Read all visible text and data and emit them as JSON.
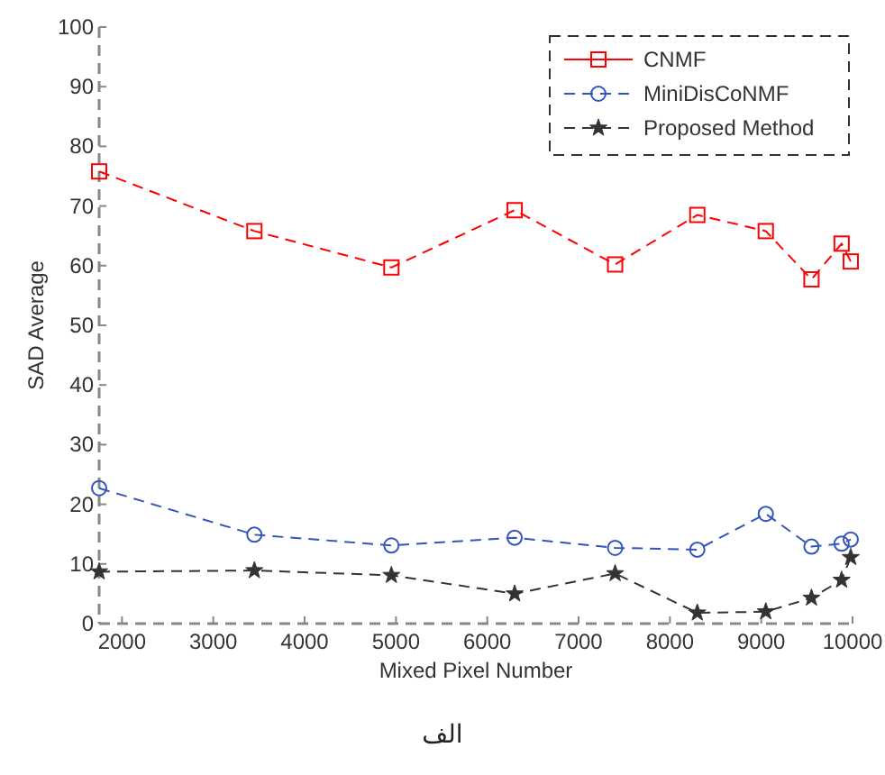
{
  "chart_data": {
    "type": "line",
    "xlabel": "Mixed Pixel Number",
    "ylabel": "SAD Average",
    "x": [
      1750,
      3450,
      4950,
      6300,
      7400,
      8300,
      9050,
      9550,
      9880,
      9980
    ],
    "series": [
      {
        "name": "CNMF",
        "color": "#ff0000",
        "marker": "square",
        "values": [
          75.8,
          65.8,
          59.7,
          69.3,
          60.2,
          68.5,
          65.8,
          57.7,
          63.7,
          60.7
        ]
      },
      {
        "name": "MiniDisCoNMF",
        "color": "#3355bb",
        "marker": "circle",
        "values": [
          22.7,
          14.9,
          13.1,
          14.4,
          12.7,
          12.4,
          18.4,
          12.9,
          13.4,
          14.1
        ]
      },
      {
        "name": "Proposed Method",
        "color": "#333333",
        "marker": "star",
        "values": [
          8.7,
          8.9,
          8.1,
          5.0,
          8.4,
          1.8,
          2.0,
          4.3,
          7.3,
          11.1
        ]
      }
    ],
    "xlim": [
      1750,
      10000
    ],
    "xticks": [
      2000,
      3000,
      4000,
      5000,
      6000,
      7000,
      8000,
      9000,
      10000
    ],
    "ylim": [
      0,
      100
    ],
    "yticks": [
      0,
      10,
      20,
      30,
      40,
      50,
      60,
      70,
      80,
      90,
      100
    ],
    "line_style": "dashed",
    "legend": "top right",
    "grid": false,
    "annotations": [
      "الف"
    ]
  }
}
